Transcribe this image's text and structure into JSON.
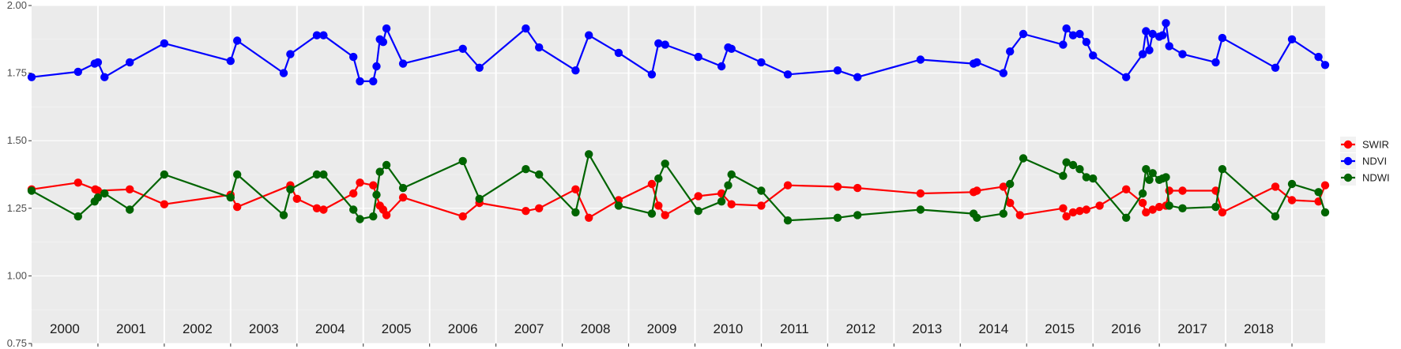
{
  "chart_data": {
    "type": "line",
    "title": "",
    "xlabel": "",
    "ylabel": "",
    "xlim": [
      1999.5,
      2019.0
    ],
    "ylim": [
      0.75,
      2.0
    ],
    "y_ticks": [
      "0.75",
      "1.00",
      "1.25",
      "1.50",
      "1.75",
      "2.00"
    ],
    "year_labels": [
      "2000",
      "2001",
      "2002",
      "2003",
      "2004",
      "2005",
      "2006",
      "2007",
      "2008",
      "2009",
      "2010",
      "2011",
      "2012",
      "2013",
      "2014",
      "2015",
      "2016",
      "2017",
      "2018"
    ],
    "grid": true,
    "legend_position": "right",
    "series": [
      {
        "name": "SWIR",
        "color": "#FF0000",
        "points": [
          [
            1999.5,
            1.32
          ],
          [
            2000.2,
            1.345
          ],
          [
            2000.46,
            1.32
          ],
          [
            2000.5,
            1.315
          ],
          [
            2000.98,
            1.32
          ],
          [
            2001.5,
            1.265
          ],
          [
            2002.5,
            1.3
          ],
          [
            2002.6,
            1.255
          ],
          [
            2003.4,
            1.335
          ],
          [
            2003.5,
            1.285
          ],
          [
            2003.8,
            1.25
          ],
          [
            2003.9,
            1.245
          ],
          [
            2004.35,
            1.305
          ],
          [
            2004.45,
            1.345
          ],
          [
            2004.65,
            1.335
          ],
          [
            2004.75,
            1.26
          ],
          [
            2004.8,
            1.245
          ],
          [
            2004.85,
            1.225
          ],
          [
            2005.1,
            1.29
          ],
          [
            2006.0,
            1.22
          ],
          [
            2006.25,
            1.27
          ],
          [
            2006.95,
            1.24
          ],
          [
            2007.15,
            1.25
          ],
          [
            2007.7,
            1.32
          ],
          [
            2007.9,
            1.215
          ],
          [
            2008.35,
            1.28
          ],
          [
            2008.85,
            1.34
          ],
          [
            2008.95,
            1.26
          ],
          [
            2009.05,
            1.225
          ],
          [
            2009.55,
            1.295
          ],
          [
            2009.9,
            1.305
          ],
          [
            2010.05,
            1.265
          ],
          [
            2010.5,
            1.26
          ],
          [
            2010.9,
            1.335
          ],
          [
            2011.65,
            1.33
          ],
          [
            2011.95,
            1.325
          ],
          [
            2012.9,
            1.305
          ],
          [
            2013.7,
            1.31
          ],
          [
            2013.75,
            1.315
          ],
          [
            2014.15,
            1.33
          ],
          [
            2014.25,
            1.27
          ],
          [
            2014.4,
            1.225
          ],
          [
            2015.05,
            1.25
          ],
          [
            2015.1,
            1.22
          ],
          [
            2015.2,
            1.235
          ],
          [
            2015.3,
            1.24
          ],
          [
            2015.4,
            1.245
          ],
          [
            2015.6,
            1.26
          ],
          [
            2016.0,
            1.32
          ],
          [
            2016.25,
            1.27
          ],
          [
            2016.3,
            1.235
          ],
          [
            2016.4,
            1.245
          ],
          [
            2016.5,
            1.255
          ],
          [
            2016.6,
            1.26
          ],
          [
            2016.65,
            1.315
          ],
          [
            2016.85,
            1.315
          ],
          [
            2017.35,
            1.315
          ],
          [
            2017.45,
            1.235
          ],
          [
            2018.25,
            1.33
          ],
          [
            2018.5,
            1.28
          ],
          [
            2018.9,
            1.275
          ],
          [
            2019.0,
            1.335
          ]
        ]
      },
      {
        "name": "NDVI",
        "color": "#0000FF",
        "points": [
          [
            1999.5,
            1.735
          ],
          [
            2000.2,
            1.755
          ],
          [
            2000.45,
            1.785
          ],
          [
            2000.5,
            1.79
          ],
          [
            2000.6,
            1.735
          ],
          [
            2000.98,
            1.79
          ],
          [
            2001.5,
            1.86
          ],
          [
            2002.5,
            1.795
          ],
          [
            2002.6,
            1.87
          ],
          [
            2003.3,
            1.75
          ],
          [
            2003.4,
            1.82
          ],
          [
            2003.8,
            1.89
          ],
          [
            2003.9,
            1.89
          ],
          [
            2004.35,
            1.81
          ],
          [
            2004.45,
            1.72
          ],
          [
            2004.65,
            1.72
          ],
          [
            2004.7,
            1.775
          ],
          [
            2004.75,
            1.875
          ],
          [
            2004.8,
            1.865
          ],
          [
            2004.85,
            1.915
          ],
          [
            2005.1,
            1.785
          ],
          [
            2006.0,
            1.84
          ],
          [
            2006.25,
            1.77
          ],
          [
            2006.95,
            1.915
          ],
          [
            2007.15,
            1.845
          ],
          [
            2007.7,
            1.76
          ],
          [
            2007.9,
            1.89
          ],
          [
            2008.35,
            1.825
          ],
          [
            2008.85,
            1.745
          ],
          [
            2008.95,
            1.86
          ],
          [
            2009.05,
            1.855
          ],
          [
            2009.55,
            1.81
          ],
          [
            2009.9,
            1.775
          ],
          [
            2010.0,
            1.845
          ],
          [
            2010.05,
            1.84
          ],
          [
            2010.5,
            1.79
          ],
          [
            2010.9,
            1.745
          ],
          [
            2011.65,
            1.76
          ],
          [
            2011.95,
            1.735
          ],
          [
            2012.9,
            1.8
          ],
          [
            2013.7,
            1.785
          ],
          [
            2013.75,
            1.79
          ],
          [
            2014.15,
            1.75
          ],
          [
            2014.25,
            1.83
          ],
          [
            2014.45,
            1.895
          ],
          [
            2015.05,
            1.855
          ],
          [
            2015.1,
            1.915
          ],
          [
            2015.2,
            1.89
          ],
          [
            2015.3,
            1.895
          ],
          [
            2015.4,
            1.865
          ],
          [
            2015.5,
            1.815
          ],
          [
            2016.0,
            1.735
          ],
          [
            2016.25,
            1.82
          ],
          [
            2016.3,
            1.905
          ],
          [
            2016.35,
            1.835
          ],
          [
            2016.4,
            1.895
          ],
          [
            2016.5,
            1.885
          ],
          [
            2016.55,
            1.89
          ],
          [
            2016.6,
            1.935
          ],
          [
            2016.65,
            1.85
          ],
          [
            2016.85,
            1.82
          ],
          [
            2017.35,
            1.79
          ],
          [
            2017.45,
            1.88
          ],
          [
            2018.25,
            1.77
          ],
          [
            2018.5,
            1.875
          ],
          [
            2018.9,
            1.81
          ],
          [
            2019.0,
            1.78
          ]
        ]
      },
      {
        "name": "NDWI",
        "color": "#006400",
        "points": [
          [
            1999.5,
            1.315
          ],
          [
            2000.2,
            1.22
          ],
          [
            2000.45,
            1.275
          ],
          [
            2000.5,
            1.29
          ],
          [
            2000.6,
            1.305
          ],
          [
            2000.98,
            1.245
          ],
          [
            2001.5,
            1.375
          ],
          [
            2002.5,
            1.29
          ],
          [
            2002.6,
            1.375
          ],
          [
            2003.3,
            1.225
          ],
          [
            2003.4,
            1.32
          ],
          [
            2003.8,
            1.375
          ],
          [
            2003.9,
            1.375
          ],
          [
            2004.35,
            1.245
          ],
          [
            2004.45,
            1.21
          ],
          [
            2004.65,
            1.22
          ],
          [
            2004.7,
            1.3
          ],
          [
            2004.75,
            1.385
          ],
          [
            2004.85,
            1.41
          ],
          [
            2005.1,
            1.325
          ],
          [
            2006.0,
            1.425
          ],
          [
            2006.25,
            1.285
          ],
          [
            2006.95,
            1.395
          ],
          [
            2007.15,
            1.375
          ],
          [
            2007.7,
            1.235
          ],
          [
            2007.9,
            1.45
          ],
          [
            2008.35,
            1.26
          ],
          [
            2008.85,
            1.23
          ],
          [
            2008.95,
            1.36
          ],
          [
            2009.05,
            1.415
          ],
          [
            2009.55,
            1.24
          ],
          [
            2009.9,
            1.275
          ],
          [
            2010.0,
            1.335
          ],
          [
            2010.05,
            1.375
          ],
          [
            2010.5,
            1.315
          ],
          [
            2010.9,
            1.205
          ],
          [
            2011.65,
            1.215
          ],
          [
            2011.95,
            1.225
          ],
          [
            2012.9,
            1.245
          ],
          [
            2013.7,
            1.23
          ],
          [
            2013.75,
            1.215
          ],
          [
            2014.15,
            1.23
          ],
          [
            2014.25,
            1.34
          ],
          [
            2014.45,
            1.435
          ],
          [
            2015.05,
            1.37
          ],
          [
            2015.1,
            1.42
          ],
          [
            2015.2,
            1.41
          ],
          [
            2015.3,
            1.395
          ],
          [
            2015.4,
            1.365
          ],
          [
            2015.5,
            1.36
          ],
          [
            2016.0,
            1.215
          ],
          [
            2016.25,
            1.305
          ],
          [
            2016.3,
            1.395
          ],
          [
            2016.35,
            1.355
          ],
          [
            2016.4,
            1.38
          ],
          [
            2016.5,
            1.355
          ],
          [
            2016.55,
            1.36
          ],
          [
            2016.6,
            1.365
          ],
          [
            2016.65,
            1.26
          ],
          [
            2016.85,
            1.25
          ],
          [
            2017.35,
            1.255
          ],
          [
            2017.45,
            1.395
          ],
          [
            2018.25,
            1.22
          ],
          [
            2018.5,
            1.34
          ],
          [
            2018.9,
            1.31
          ],
          [
            2019.0,
            1.235
          ]
        ]
      }
    ]
  }
}
